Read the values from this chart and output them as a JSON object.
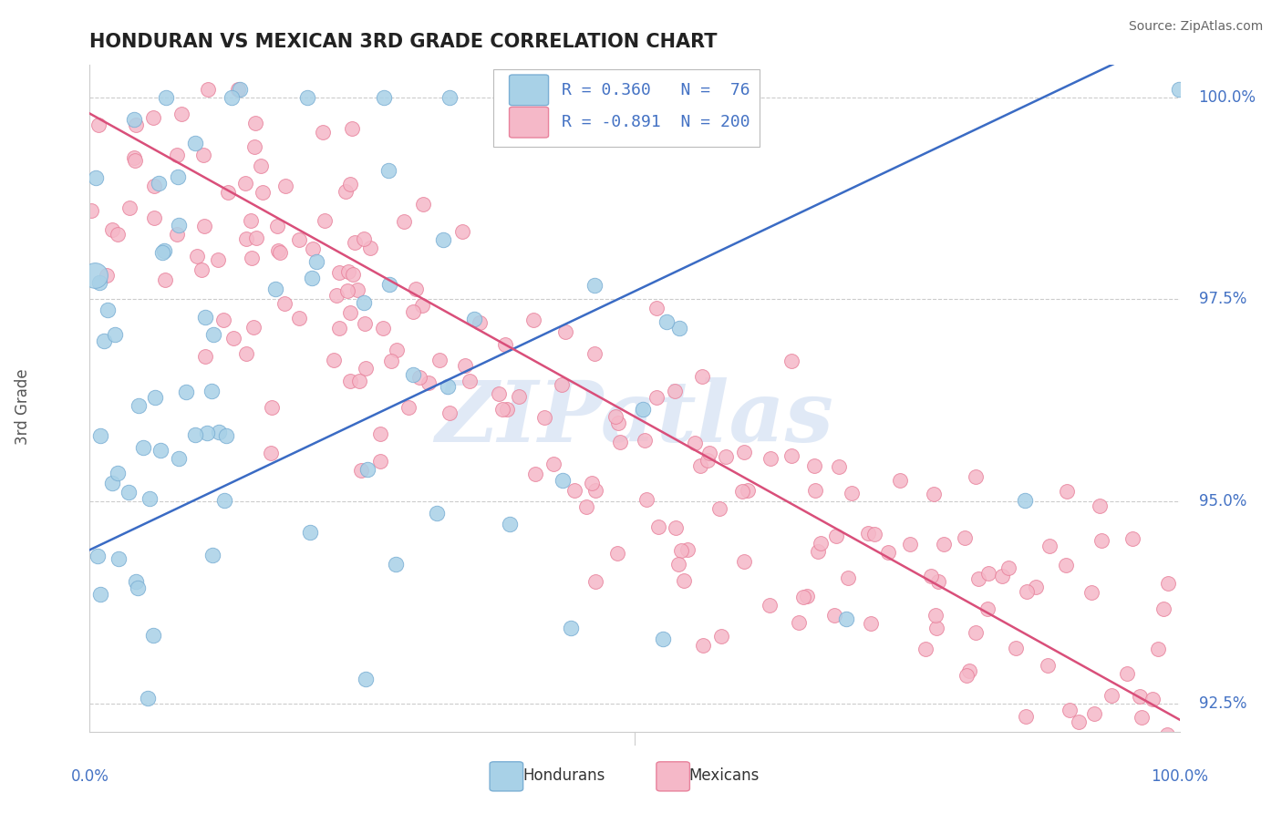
{
  "title": "HONDURAN VS MEXICAN 3RD GRADE CORRELATION CHART",
  "source": "Source: ZipAtlas.com",
  "ylabel": "3rd Grade",
  "ymin": 0.9215,
  "ymax": 1.004,
  "xmin": 0.0,
  "xmax": 1.0,
  "honduran_fill": "#A8D1E7",
  "honduran_edge": "#7BAFD4",
  "mexican_fill": "#F5B8C8",
  "mexican_edge": "#E8829C",
  "line_blue_color": "#3A6BC4",
  "line_pink_color": "#D94F7A",
  "R_honduran": 0.36,
  "N_honduran": 76,
  "R_mexican": -0.891,
  "N_mexican": 200,
  "legend_label_honduran": "Hondurans",
  "legend_label_mexican": "Mexicans",
  "bg_color": "#FFFFFF",
  "grid_color": "#CCCCCC",
  "label_color": "#4472C4",
  "title_color": "#222222",
  "source_color": "#666666",
  "ylabel_color": "#555555",
  "watermark_color": "#C8D8F0",
  "ytick_vals": [
    1.0,
    0.975,
    0.95,
    0.925
  ],
  "ytick_labels": [
    "100.0%",
    "97.5%",
    "95.0%",
    "92.5%"
  ],
  "blue_line_x": [
    0.0,
    1.0
  ],
  "blue_line_y": [
    0.944,
    1.008
  ],
  "pink_line_x": [
    0.0,
    1.0
  ],
  "pink_line_y": [
    0.998,
    0.923
  ]
}
